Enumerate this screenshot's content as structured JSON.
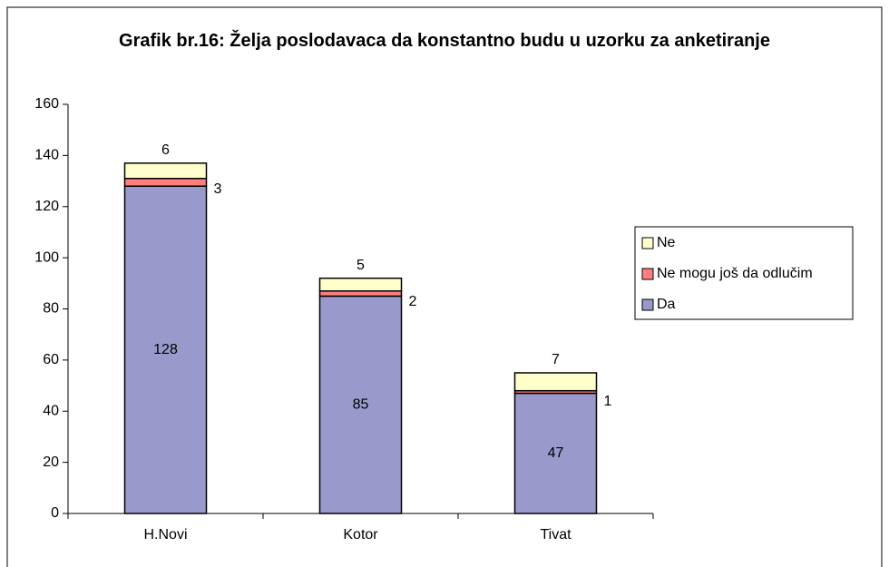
{
  "chart_data": {
    "type": "stacked_bar",
    "title": "Grafik br.16: Želja poslodavaca da konstantno budu u uzorku za anketiranje",
    "categories": [
      "H.Novi",
      "Kotor",
      "Tivat"
    ],
    "series": [
      {
        "name": "Da",
        "color": "#9999cc",
        "values": [
          128,
          85,
          47
        ]
      },
      {
        "name": "Ne mogu još da odlučim",
        "color": "#ff7f7f",
        "values": [
          3,
          2,
          1
        ]
      },
      {
        "name": "Ne",
        "color": "#ffffcc",
        "values": [
          6,
          5,
          7
        ]
      }
    ],
    "ylim": [
      0,
      160
    ],
    "yticks": [
      0,
      20,
      40,
      60,
      80,
      100,
      120,
      140,
      160
    ],
    "grid": false,
    "legend": "right"
  }
}
